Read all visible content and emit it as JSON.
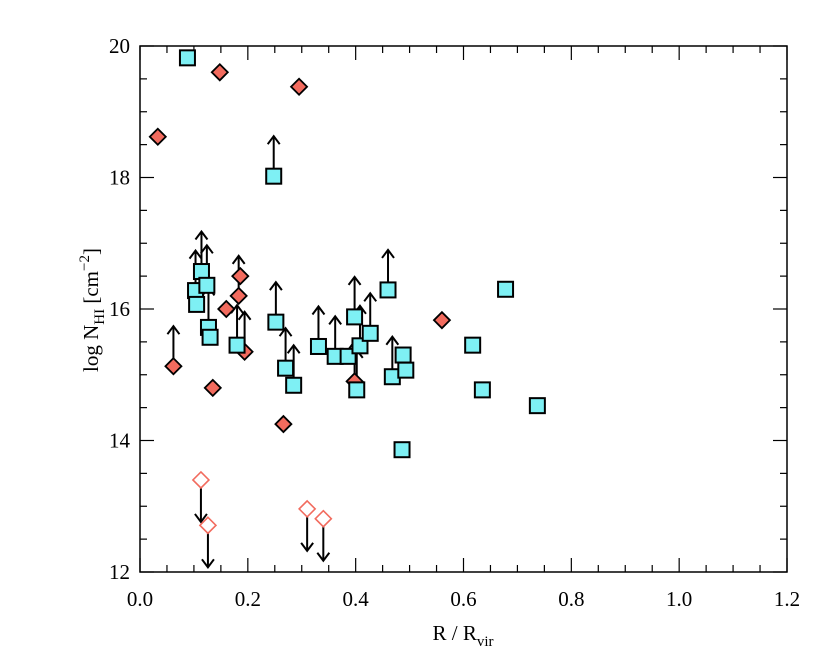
{
  "chart_data": {
    "type": "scatter",
    "xlabel": {
      "main": "R / R",
      "sub": "vir"
    },
    "ylabel": {
      "main": "log N",
      "sub": "HI",
      "unit_open": " [cm",
      "unit_sup": "−2",
      "unit_close": "]"
    },
    "xlim": [
      0.0,
      1.2
    ],
    "ylim": [
      12,
      20
    ],
    "x_ticks": [
      "0.0",
      "0.2",
      "0.4",
      "0.6",
      "0.8",
      "1.0",
      "1.2"
    ],
    "y_ticks": [
      "12",
      "14",
      "16",
      "18",
      "20"
    ],
    "grid": false,
    "legend": "none",
    "colors": {
      "diamond": "#f26b5e",
      "square": "#7ef0f4",
      "open_diamond": "#f26b5e",
      "edge": "#000000",
      "arrow": "#000000"
    },
    "series": [
      {
        "marker": "filled-diamond",
        "points": [
          {
            "x": 0.033,
            "y": 18.62
          },
          {
            "x": 0.062,
            "y": 15.13,
            "limit": "lower"
          },
          {
            "x": 0.135,
            "y": 14.8
          },
          {
            "x": 0.148,
            "y": 19.6
          },
          {
            "x": 0.16,
            "y": 16.0
          },
          {
            "x": 0.183,
            "y": 16.2,
            "limit": "lower"
          },
          {
            "x": 0.186,
            "y": 16.5
          },
          {
            "x": 0.194,
            "y": 15.35,
            "limit": "lower"
          },
          {
            "x": 0.266,
            "y": 14.25
          },
          {
            "x": 0.295,
            "y": 19.38
          },
          {
            "x": 0.398,
            "y": 14.9,
            "limit": "lower"
          },
          {
            "x": 0.56,
            "y": 15.83
          }
        ]
      },
      {
        "marker": "open-diamond",
        "points": [
          {
            "x": 0.113,
            "y": 13.4,
            "limit": "upper"
          },
          {
            "x": 0.126,
            "y": 12.71,
            "limit": "upper"
          },
          {
            "x": 0.31,
            "y": 12.96,
            "limit": "upper"
          },
          {
            "x": 0.34,
            "y": 12.81,
            "limit": "upper"
          }
        ]
      },
      {
        "marker": "filled-square",
        "points": [
          {
            "x": 0.088,
            "y": 19.82
          },
          {
            "x": 0.103,
            "y": 16.28,
            "limit": "lower"
          },
          {
            "x": 0.105,
            "y": 16.07
          },
          {
            "x": 0.114,
            "y": 16.57,
            "limit": "lower"
          },
          {
            "x": 0.124,
            "y": 16.36,
            "limit": "lower"
          },
          {
            "x": 0.127,
            "y": 15.72,
            "limit": "lower"
          },
          {
            "x": 0.13,
            "y": 15.57
          },
          {
            "x": 0.18,
            "y": 15.45,
            "limit": "lower"
          },
          {
            "x": 0.248,
            "y": 18.02,
            "limit": "lower"
          },
          {
            "x": 0.252,
            "y": 15.8,
            "limit": "lower"
          },
          {
            "x": 0.27,
            "y": 15.1,
            "limit": "lower"
          },
          {
            "x": 0.285,
            "y": 14.84,
            "limit": "lower"
          },
          {
            "x": 0.331,
            "y": 15.43,
            "limit": "lower"
          },
          {
            "x": 0.362,
            "y": 15.28,
            "limit": "lower"
          },
          {
            "x": 0.386,
            "y": 15.28
          },
          {
            "x": 0.398,
            "y": 15.88,
            "limit": "lower"
          },
          {
            "x": 0.402,
            "y": 14.77,
            "limit": "lower"
          },
          {
            "x": 0.408,
            "y": 15.44,
            "limit": "lower"
          },
          {
            "x": 0.427,
            "y": 15.63,
            "limit": "lower"
          },
          {
            "x": 0.46,
            "y": 16.29,
            "limit": "lower"
          },
          {
            "x": 0.468,
            "y": 14.97,
            "limit": "lower"
          },
          {
            "x": 0.486,
            "y": 13.86
          },
          {
            "x": 0.488,
            "y": 15.3
          },
          {
            "x": 0.493,
            "y": 15.07
          },
          {
            "x": 0.617,
            "y": 15.45
          },
          {
            "x": 0.635,
            "y": 14.77
          },
          {
            "x": 0.678,
            "y": 16.3
          },
          {
            "x": 0.737,
            "y": 14.53
          }
        ]
      }
    ]
  }
}
